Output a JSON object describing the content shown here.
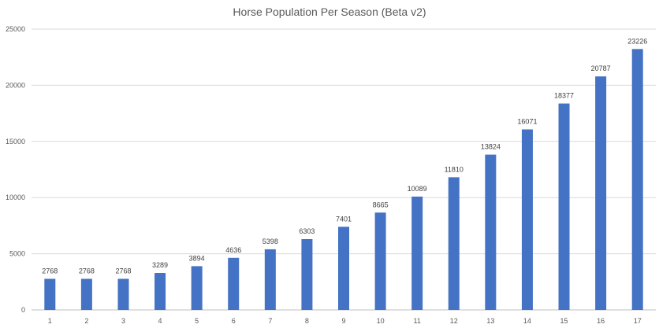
{
  "chart_data": {
    "type": "bar",
    "title": "Horse Population Per Season (Beta v2)",
    "xlabel": "",
    "ylabel": "",
    "categories": [
      "1",
      "2",
      "3",
      "4",
      "5",
      "6",
      "7",
      "8",
      "9",
      "10",
      "11",
      "12",
      "13",
      "14",
      "15",
      "16",
      "17"
    ],
    "values": [
      2768,
      2768,
      2768,
      3289,
      3894,
      4636,
      5398,
      6303,
      7401,
      8665,
      10089,
      11810,
      13824,
      16071,
      18377,
      20787,
      23226
    ],
    "ylim": [
      0,
      25000
    ],
    "yticks": [
      0,
      5000,
      10000,
      15000,
      20000,
      25000
    ],
    "grid": true,
    "legend": "none",
    "data_labels": true,
    "bar_color": "#4472c4"
  }
}
